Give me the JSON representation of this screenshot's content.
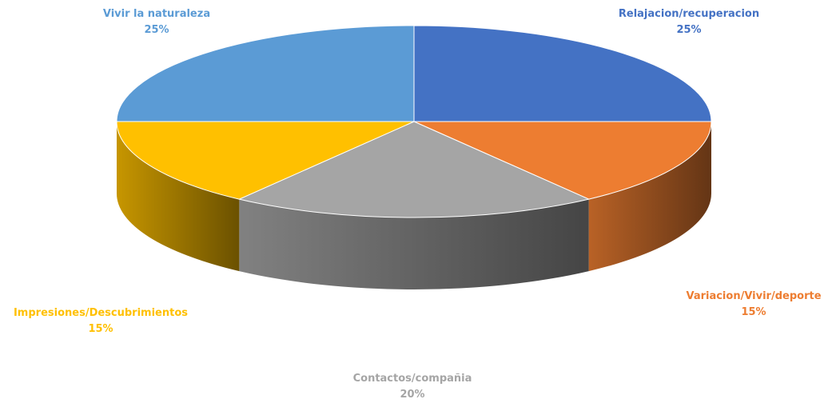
{
  "chart_data": {
    "type": "pie",
    "style": "3d",
    "title": "",
    "slices": [
      {
        "label": "Relajacion/recuperacion",
        "value": 25,
        "value_label": "25%",
        "color": "#4472c4",
        "label_color": "#4472c4"
      },
      {
        "label": "Variacion/Vivir/deporte",
        "value": 15,
        "value_label": "15%",
        "color": "#ed7d31",
        "label_color": "#ed7d31"
      },
      {
        "label": "Contactos/compañia",
        "value": 20,
        "value_label": "20%",
        "color": "#a5a5a5",
        "label_color": "#a5a5a5"
      },
      {
        "label": "Impresiones/Descubrimientos",
        "value": 15,
        "value_label": "15%",
        "color": "#ffc000",
        "label_color": "#ffc000"
      },
      {
        "label": "Vivir la naturaleza",
        "value": 25,
        "value_label": "25%",
        "color": "#5b9bd5",
        "label_color": "#5b9bd5"
      }
    ]
  }
}
